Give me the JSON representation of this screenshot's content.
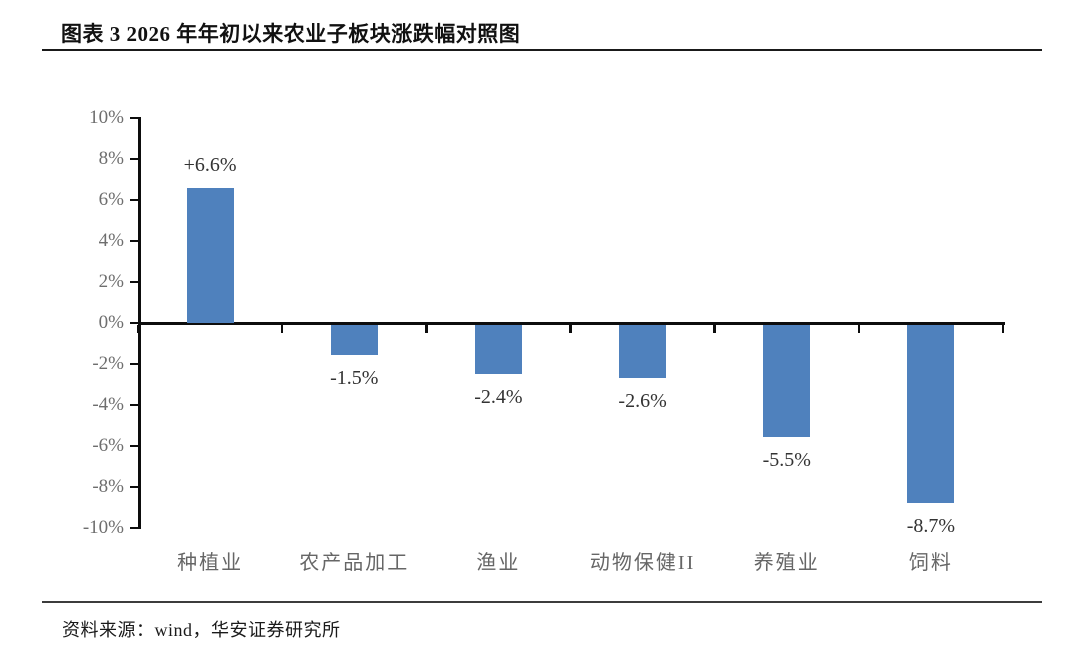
{
  "header": {
    "title": "图表 3 2026 年年初以来农业子板块涨跌幅对照图"
  },
  "footer": {
    "source": "资料来源：wind，华安证券研究所"
  },
  "chart_data": {
    "type": "bar",
    "title": "2026 年年初以来农业子板块涨跌幅对照图",
    "categories": [
      "种植业",
      "农产品加工",
      "渔业",
      "动物保健II",
      "养殖业",
      "饲料"
    ],
    "values": [
      6.6,
      -1.5,
      -2.4,
      -2.6,
      -5.5,
      -8.7
    ],
    "data_labels": [
      "+6.6%",
      "-1.5%",
      "-2.4%",
      "-2.6%",
      "-5.5%",
      "-8.7%"
    ],
    "xlabel": "",
    "ylabel": "",
    "ylim": [
      -10,
      10
    ],
    "y_tick_values": [
      10,
      8,
      6,
      4,
      2,
      0,
      -2,
      -4,
      -6,
      -8,
      -10
    ],
    "y_tick_labels": [
      "10%",
      "8%",
      "6%",
      "4%",
      "2%",
      "0%",
      "-2%",
      "-4%",
      "-6%",
      "-8%",
      "-10%"
    ],
    "grid": false,
    "legend": "none",
    "bar_color": "#4F81BD",
    "axis_color": "#0d0d0d",
    "tick_label_color": "#6e6e6e",
    "data_label_color": "#333333"
  }
}
